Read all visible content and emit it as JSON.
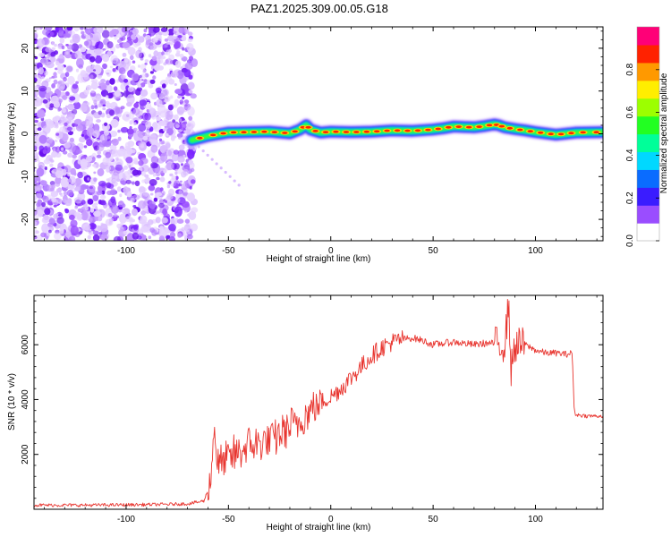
{
  "title": "PAZ1.2025.309.00.05.G18",
  "chart_data": [
    {
      "type": "heatmap",
      "name": "spectrogram",
      "xlabel": "Height of straight line (km)",
      "ylabel": "Frequency (Hz)",
      "xlim": [
        -145,
        133
      ],
      "ylim": [
        -25,
        25
      ],
      "x_ticks": [
        -100,
        -50,
        0,
        50,
        100
      ],
      "y_ticks": [
        -20,
        -10,
        0,
        10,
        20
      ],
      "x_tick_labels": [
        "-100",
        "-50",
        "0",
        "50",
        "100"
      ],
      "y_tick_labels": [
        "-20",
        "-10",
        "0",
        "10",
        "20"
      ],
      "noise_region_x": [
        -145,
        -68
      ],
      "signal_onset_km": -68,
      "ridge": {
        "x": [
          -68,
          -60,
          -50,
          -40,
          -30,
          -20,
          -15,
          -12,
          -10,
          -5,
          0,
          10,
          20,
          30,
          40,
          50,
          55,
          60,
          65,
          70,
          75,
          80,
          82,
          85,
          90,
          95,
          100,
          110,
          120,
          133
        ],
        "freq": [
          -1.5,
          -0.5,
          0.3,
          0.4,
          0.5,
          0.1,
          1.0,
          2.0,
          1.0,
          0.3,
          0.5,
          0.4,
          0.5,
          0.8,
          0.7,
          1.0,
          1.3,
          1.7,
          1.6,
          1.5,
          1.8,
          2.2,
          2.0,
          1.5,
          1.1,
          0.8,
          0.4,
          -0.2,
          0.3,
          0.4
        ]
      },
      "colorbar": {
        "label": "Normalized spectral amplitude",
        "range": [
          0,
          1
        ],
        "ticks": [
          0.0,
          0.2,
          0.4,
          0.6,
          0.8
        ],
        "tick_labels": [
          "0.0",
          "0.2",
          "0.4",
          "0.6",
          "0.8"
        ],
        "colors": [
          "#ffffff",
          "#9a4dff",
          "#3a1cff",
          "#0a6cff",
          "#00d8ff",
          "#00ff99",
          "#22ff22",
          "#9cff00",
          "#ffee00",
          "#ff9900",
          "#ff2200",
          "#ff0077"
        ]
      }
    },
    {
      "type": "line",
      "name": "snr",
      "xlabel": "Height of straight line (km)",
      "ylabel": "SNR (10 * v/v)",
      "xlim": [
        -145,
        133
      ],
      "ylim": [
        0,
        7800
      ],
      "x_ticks": [
        -100,
        -50,
        0,
        50,
        100
      ],
      "y_ticks": [
        2000,
        4000,
        6000
      ],
      "x_tick_labels": [
        "-100",
        "-50",
        "0",
        "50",
        "100"
      ],
      "y_tick_labels": [
        "2000",
        "4000",
        "6000"
      ],
      "color": "#e8352f",
      "series": [
        {
          "name": "SNR",
          "x": [
            -145,
            -120,
            -100,
            -80,
            -70,
            -62,
            -60,
            -58,
            -57,
            -56,
            -55,
            -50,
            -45,
            -40,
            -35,
            -30,
            -25,
            -20,
            -15,
            -10,
            -5,
            0,
            5,
            10,
            15,
            20,
            25,
            30,
            35,
            40,
            45,
            50,
            55,
            60,
            65,
            70,
            75,
            80,
            85,
            87,
            88,
            90,
            95,
            100,
            105,
            110,
            115,
            118,
            119,
            120,
            125,
            133
          ],
          "y": [
            150,
            150,
            160,
            180,
            200,
            300,
            700,
            1500,
            3400,
            2000,
            1600,
            1800,
            2100,
            2300,
            2400,
            2500,
            2700,
            3000,
            3200,
            3600,
            3900,
            4100,
            4400,
            4800,
            5200,
            5600,
            5900,
            6100,
            6200,
            6250,
            6150,
            6000,
            6050,
            6100,
            6050,
            6000,
            6050,
            6050,
            6000,
            7600,
            5000,
            6000,
            6000,
            5800,
            5700,
            5700,
            5650,
            5700,
            3500,
            3450,
            3400,
            3400
          ]
        }
      ]
    }
  ]
}
